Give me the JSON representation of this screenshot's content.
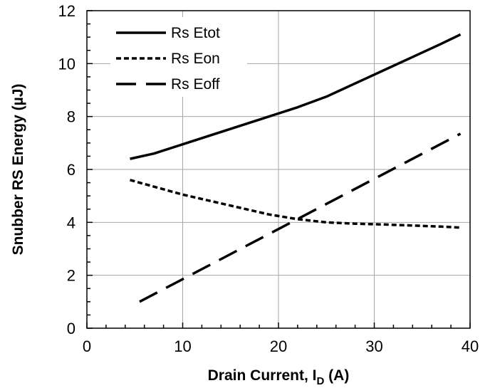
{
  "chart_data": {
    "type": "line",
    "xlabel": "Drain Current, I",
    "xlabel_sub": "D",
    "xlabel_unit": " (A)",
    "ylabel": "Snubber RS Energy (µJ)",
    "xlim": [
      0,
      40
    ],
    "ylim": [
      0,
      12
    ],
    "x_ticks": [
      0,
      10,
      20,
      30,
      40
    ],
    "y_ticks": [
      0,
      2,
      4,
      6,
      8,
      10,
      12
    ],
    "grid": true,
    "legend_position": "top-left",
    "series": [
      {
        "name": "Rs Etot",
        "style": "solid",
        "color": "#000000",
        "x": [
          4.5,
          7,
          10,
          13,
          16,
          19,
          22,
          25,
          28,
          31,
          34,
          37,
          39
        ],
        "y": [
          6.4,
          6.6,
          6.95,
          7.3,
          7.65,
          8.0,
          8.35,
          8.75,
          9.25,
          9.75,
          10.25,
          10.75,
          11.1
        ]
      },
      {
        "name": "Rs Eon",
        "style": "dotted",
        "color": "#000000",
        "x": [
          4.5,
          7,
          10,
          13,
          16,
          19,
          22,
          25,
          28,
          31,
          34,
          37,
          39
        ],
        "y": [
          5.6,
          5.35,
          5.05,
          4.8,
          4.55,
          4.3,
          4.12,
          4.0,
          3.95,
          3.92,
          3.88,
          3.84,
          3.8
        ]
      },
      {
        "name": "Rs Eoff",
        "style": "dashed",
        "color": "#000000",
        "x": [
          5.5,
          39
        ],
        "y": [
          1.0,
          7.35
        ]
      }
    ]
  }
}
